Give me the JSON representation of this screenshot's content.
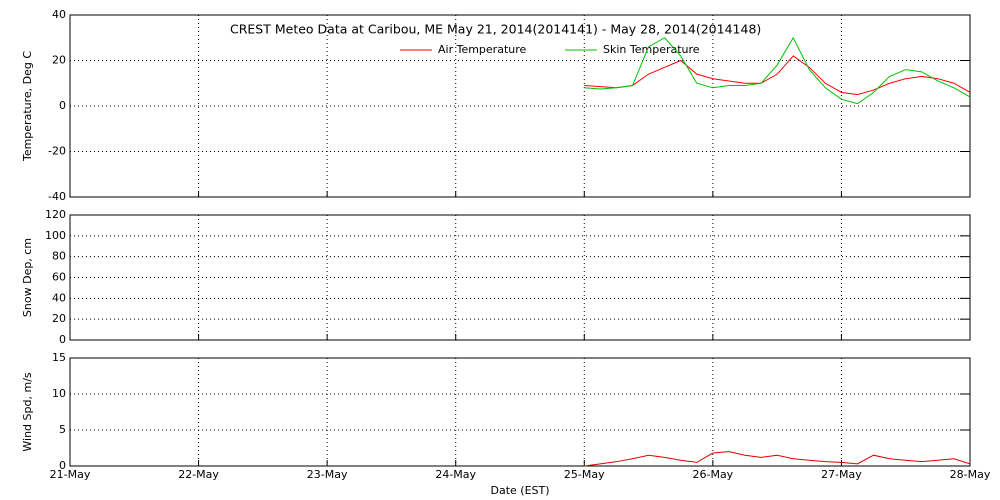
{
  "chart_data": [
    {
      "type": "line",
      "title": "CREST Meteo Data at Caribou, ME   May 21, 2014(2014141) - May 28, 2014(2014148)",
      "y_label": "Temperature, Deg C",
      "ylim": [
        -40,
        40
      ],
      "yticks": [
        -40,
        -20,
        0,
        20,
        40
      ],
      "grid": true,
      "x": [
        25.0,
        25.125,
        25.25,
        25.375,
        25.5,
        25.625,
        25.75,
        25.875,
        26.0,
        26.125,
        26.25,
        26.375,
        26.5,
        26.625,
        26.75,
        26.875,
        27.0,
        27.125,
        27.25,
        27.375,
        27.5,
        27.625,
        27.75,
        27.875,
        28.0
      ],
      "series": [
        {
          "name": "Air Temperature",
          "color": "#ff0000",
          "values": [
            9,
            8.5,
            8,
            9,
            14,
            17,
            20,
            14,
            12,
            11,
            10,
            10,
            14,
            22,
            17,
            10,
            6,
            5,
            7,
            10,
            12,
            13,
            12,
            10,
            6
          ]
        },
        {
          "name": "Skin Temperature",
          "color": "#00c000",
          "values": [
            8,
            7.5,
            8,
            9,
            26,
            30,
            22,
            10,
            8,
            9,
            9,
            10,
            18,
            30,
            16,
            8,
            3,
            1,
            6,
            13,
            16,
            15,
            11,
            8,
            4
          ]
        }
      ]
    },
    {
      "type": "line",
      "y_label": "Snow Dep, cm",
      "ylim": [
        0,
        120
      ],
      "yticks": [
        0,
        20,
        40,
        60,
        80,
        100,
        120
      ],
      "grid": true,
      "x": [],
      "series": []
    },
    {
      "type": "line",
      "y_label": "Wind Spd, m/s",
      "x_label": "Date (EST)",
      "xlim": [
        21,
        28
      ],
      "xticks": [
        {
          "value": 21,
          "label": "21-May"
        },
        {
          "value": 22,
          "label": "22-May"
        },
        {
          "value": 23,
          "label": "23-May"
        },
        {
          "value": 24,
          "label": "24-May"
        },
        {
          "value": 25,
          "label": "25-May"
        },
        {
          "value": 26,
          "label": "26-May"
        },
        {
          "value": 27,
          "label": "27-May"
        },
        {
          "value": 28,
          "label": "28-May"
        }
      ],
      "ylim": [
        0,
        15
      ],
      "yticks": [
        0,
        5,
        10,
        15
      ],
      "grid": true,
      "x": [
        25.0,
        25.125,
        25.25,
        25.375,
        25.5,
        25.625,
        25.75,
        25.875,
        26.0,
        26.125,
        26.25,
        26.375,
        26.5,
        26.625,
        26.75,
        26.875,
        27.0,
        27.125,
        27.25,
        27.375,
        27.5,
        27.625,
        27.75,
        27.875,
        28.0
      ],
      "series": [
        {
          "color": "#e00000",
          "values": [
            0,
            0.3,
            0.6,
            1.0,
            1.5,
            1.2,
            0.8,
            0.5,
            1.8,
            2.0,
            1.5,
            1.2,
            1.5,
            1.0,
            0.8,
            0.6,
            0.5,
            0.3,
            1.5,
            1.0,
            0.8,
            0.6,
            0.8,
            1.0,
            0.3
          ]
        }
      ]
    }
  ]
}
